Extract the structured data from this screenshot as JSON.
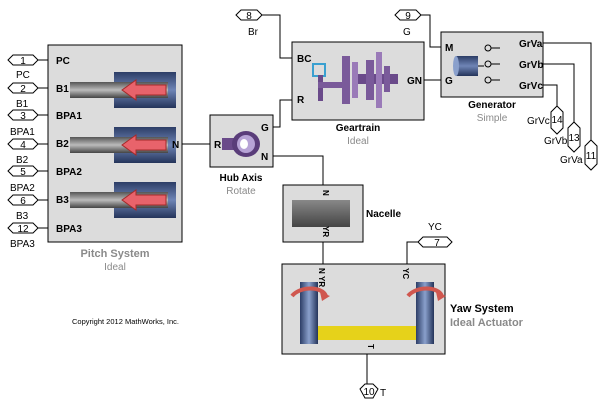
{
  "pitch_system": {
    "title": "Pitch System",
    "subtitle": "Ideal",
    "ports": [
      "PC",
      "B1",
      "BPA1",
      "B2",
      "BPA2",
      "B3",
      "BPA3"
    ],
    "right_port": "N"
  },
  "inports": [
    {
      "num": "1",
      "label": "PC"
    },
    {
      "num": "2",
      "label": "B1"
    },
    {
      "num": "3",
      "label": "BPA1"
    },
    {
      "num": "4",
      "label": "B2"
    },
    {
      "num": "5",
      "label": "BPA2"
    },
    {
      "num": "6",
      "label": "B3"
    },
    {
      "num": "12",
      "label": "BPA3"
    }
  ],
  "hub_axis": {
    "title": "Hub Axis",
    "subtitle": "Rotate",
    "port_r": "R",
    "port_g": "G",
    "port_n": "N"
  },
  "geartrain": {
    "title": "Geartrain",
    "subtitle": "Ideal",
    "port_bc": "BC",
    "port_r": "R",
    "port_gn": "GN"
  },
  "generator": {
    "title": "Generator",
    "subtitle": "Simple",
    "port_m": "M",
    "port_g": "G",
    "out1": "GrVa",
    "out2": "GrVb",
    "out3": "GrVc"
  },
  "nacelle": {
    "title": "Nacelle",
    "port_top": "N",
    "port_bottom": "YR"
  },
  "yaw_system": {
    "title": "Yaw System",
    "subtitle": "Ideal Actuator",
    "port_n": "N",
    "port_yr": "YR",
    "port_yc": "YC",
    "port_t": "T"
  },
  "top_inports": [
    {
      "num": "8",
      "label": "Br"
    },
    {
      "num": "9",
      "label": "G"
    },
    {
      "num": "7",
      "label": "YC"
    }
  ],
  "outports": [
    {
      "num": "14",
      "label": "GrVc"
    },
    {
      "num": "13",
      "label": "GrVb"
    },
    {
      "num": "11",
      "label": "GrVa"
    },
    {
      "num": "10",
      "label": "T"
    }
  ],
  "copyright": "Copyright 2012 MathWorks, Inc.",
  "colors": {
    "block_fill": "#dcdcdc",
    "caption": "#8a8a8a",
    "arrow": "#e8636b",
    "cylinder": "#3c4f7a",
    "gear": "#7a5a9a",
    "bar": "#e6d21a"
  }
}
